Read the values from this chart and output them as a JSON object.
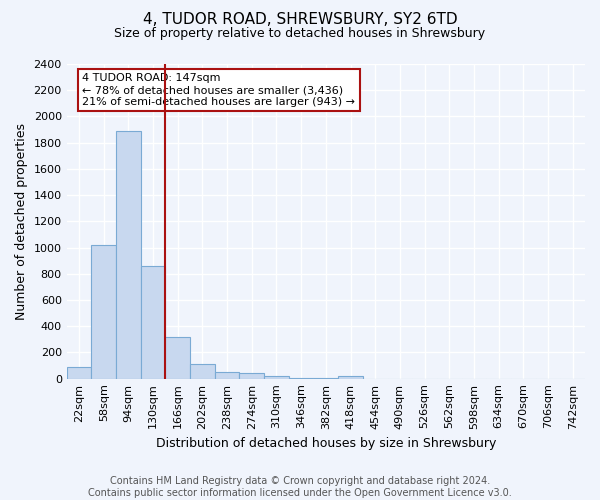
{
  "title": "4, TUDOR ROAD, SHREWSBURY, SY2 6TD",
  "subtitle": "Size of property relative to detached houses in Shrewsbury",
  "xlabel": "Distribution of detached houses by size in Shrewsbury",
  "ylabel": "Number of detached properties",
  "categories": [
    "22sqm",
    "58sqm",
    "94sqm",
    "130sqm",
    "166sqm",
    "202sqm",
    "238sqm",
    "274sqm",
    "310sqm",
    "346sqm",
    "382sqm",
    "418sqm",
    "454sqm",
    "490sqm",
    "526sqm",
    "562sqm",
    "598sqm",
    "634sqm",
    "670sqm",
    "706sqm",
    "742sqm"
  ],
  "values": [
    90,
    1020,
    1890,
    860,
    320,
    115,
    50,
    45,
    20,
    5,
    5,
    20,
    0,
    0,
    0,
    0,
    0,
    0,
    0,
    0,
    0
  ],
  "bar_color": "#c8d8ef",
  "bar_edge_color": "#7aaad4",
  "vline_x": 3.5,
  "vline_color": "#aa1111",
  "annotation_title": "4 TUDOR ROAD: 147sqm",
  "annotation_line1": "← 78% of detached houses are smaller (3,436)",
  "annotation_line2": "21% of semi-detached houses are larger (943) →",
  "annotation_box_color": "#aa1111",
  "ylim": [
    0,
    2400
  ],
  "yticks": [
    0,
    200,
    400,
    600,
    800,
    1000,
    1200,
    1400,
    1600,
    1800,
    2000,
    2200,
    2400
  ],
  "footer_line1": "Contains HM Land Registry data © Crown copyright and database right 2024.",
  "footer_line2": "Contains public sector information licensed under the Open Government Licence v3.0.",
  "bg_color": "#f0f4fc",
  "plot_bg_color": "#f0f4fc",
  "grid_color": "#ffffff",
  "title_fontsize": 11,
  "subtitle_fontsize": 9,
  "axis_label_fontsize": 9,
  "tick_fontsize": 8,
  "annotation_fontsize": 8,
  "footer_fontsize": 7
}
